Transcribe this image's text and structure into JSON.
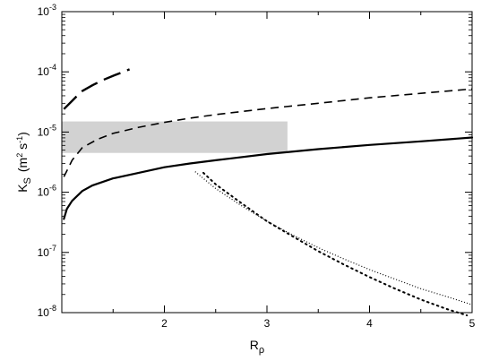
{
  "chart_data": {
    "type": "line",
    "xlabel": "R",
    "xlabel_sub": "ρ",
    "ylabel": "K",
    "ylabel_sub": "S",
    "ylabel_units": {
      "prefix": "(m",
      "sup1": "2",
      "mid": " s",
      "sup2": "-1",
      "suffix": ")"
    },
    "xlim": [
      1,
      5
    ],
    "ylim": [
      1e-08,
      0.001
    ],
    "y_scale": "log",
    "x_ticks": [
      2,
      3,
      4,
      5
    ],
    "x_tick_labels": [
      "2",
      "3",
      "4",
      "5"
    ],
    "y_ticks": [
      {
        "base": "10",
        "exp": "-8",
        "value": 1e-08
      },
      {
        "base": "10",
        "exp": "-7",
        "value": 1e-07
      },
      {
        "base": "10",
        "exp": "-6",
        "value": 1e-06
      },
      {
        "base": "10",
        "exp": "-5",
        "value": 1e-05
      },
      {
        "base": "10",
        "exp": "-4",
        "value": 0.0001
      },
      {
        "base": "10",
        "exp": "-3",
        "value": 0.001
      }
    ],
    "grid": false,
    "shaded_band": {
      "x": [
        1,
        3.2
      ],
      "y": [
        4.5e-06,
        1.5e-05
      ],
      "color": "#d2d2d2"
    },
    "series": [
      {
        "style": "solid",
        "color": "#000000",
        "x": [
          1.02,
          1.05,
          1.1,
          1.2,
          1.3,
          1.5,
          1.75,
          2.0,
          2.25,
          2.5,
          3.0,
          3.5,
          4.0,
          4.5,
          5.0
        ],
        "y": [
          3.6e-07,
          5.3e-07,
          7.2e-07,
          1.05e-06,
          1.3e-06,
          1.7e-06,
          2.1e-06,
          2.6e-06,
          3e-06,
          3.4e-06,
          4.3e-06,
          5.2e-06,
          6.1e-06,
          7e-06,
          8.1e-06
        ]
      },
      {
        "style": "short-dash",
        "color": "#000000",
        "x": [
          1.02,
          1.1,
          1.2,
          1.35,
          1.5,
          1.75,
          2.0,
          2.25,
          2.5,
          3.0,
          3.5,
          4.0,
          4.5,
          5.0
        ],
        "y": [
          1.8e-06,
          3.4e-06,
          5.5e-06,
          7.6e-06,
          9.5e-06,
          1.2e-05,
          1.45e-05,
          1.7e-05,
          1.95e-05,
          2.45e-05,
          3e-05,
          3.7e-05,
          4.4e-05,
          5.2e-05
        ]
      },
      {
        "style": "long-dash",
        "color": "#000000",
        "x": [
          1.02,
          1.1,
          1.15,
          1.2,
          1.3,
          1.4,
          1.5,
          1.6,
          1.66
        ],
        "y": [
          2.4e-05,
          3.3e-05,
          4e-05,
          4.8e-05,
          6e-05,
          7.3e-05,
          8.6e-05,
          0.0001,
          0.00011
        ]
      },
      {
        "style": "dotted-fine",
        "color": "#000000",
        "x": [
          2.3,
          2.5,
          2.75,
          3.0,
          3.25,
          3.5,
          3.75,
          4.0,
          4.25,
          4.5,
          4.75,
          5.0
        ],
        "y": [
          2.2e-06,
          1.15e-06,
          6e-07,
          3.3e-07,
          1.95e-07,
          1.2e-07,
          7.8e-08,
          5.2e-08,
          3.6e-08,
          2.5e-08,
          1.85e-08,
          1.35e-08
        ]
      },
      {
        "style": "dotted-coarse",
        "color": "#000000",
        "x": [
          2.38,
          2.5,
          2.75,
          3.0,
          3.25,
          3.5,
          3.75,
          4.0,
          4.25,
          4.5,
          4.75,
          4.95
        ],
        "y": [
          2.1e-06,
          1.35e-06,
          6.6e-07,
          3.3e-07,
          1.85e-07,
          1.05e-07,
          6.3e-08,
          3.9e-08,
          2.5e-08,
          1.65e-08,
          1.15e-08,
          9e-09
        ]
      }
    ]
  }
}
